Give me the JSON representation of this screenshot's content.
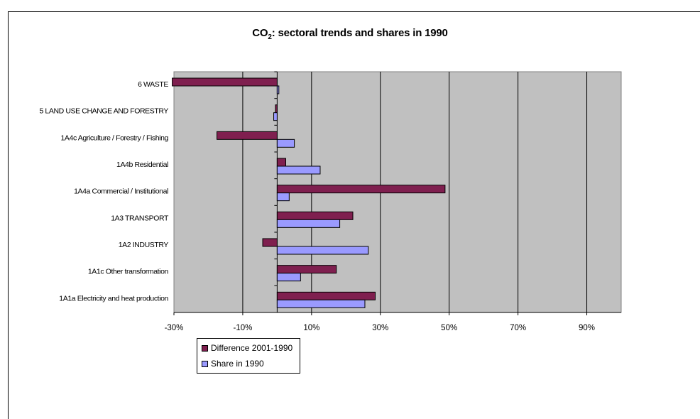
{
  "chart_data": {
    "type": "bar",
    "orientation": "horizontal",
    "title_main": "CO",
    "title_sub": "2",
    "title_rest": ": sectoral trends and shares in 1990",
    "categories": [
      "6 WASTE",
      "5 LAND USE CHANGE AND FORESTRY",
      "1A4c Agriculture / Forestry / Fishing",
      "1A4b Residential",
      "1A4a Commercial / Institutional",
      "1A3 TRANSPORT",
      "1A2 INDUSTRY",
      "1A1c Other transformation",
      "1A1a Electricity and heat production"
    ],
    "series": [
      {
        "name": "Difference 2001-1990",
        "color": "#7f1f4f",
        "values": [
          -30.5,
          -0.5,
          -17.5,
          2.5,
          48.8,
          22.0,
          -4.2,
          17.2,
          28.5
        ]
      },
      {
        "name": "Share in 1990",
        "color": "#9a9aff",
        "values": [
          0.5,
          -1.0,
          5.0,
          12.5,
          3.5,
          18.2,
          26.5,
          6.8,
          25.5
        ]
      }
    ],
    "xlim": [
      -30,
      100
    ],
    "xticks": [
      -30,
      -10,
      10,
      30,
      50,
      70,
      90
    ],
    "xtick_labels": [
      "-30%",
      "-10%",
      "10%",
      "30%",
      "50%",
      "70%",
      "90%"
    ],
    "plot_background": "#c0c0c0",
    "grid": "vertical",
    "legend_position": "bottom-left"
  }
}
